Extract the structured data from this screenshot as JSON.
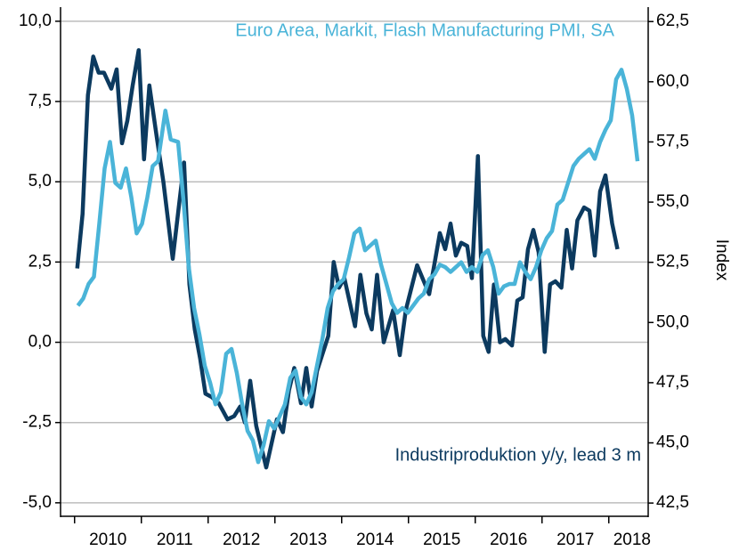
{
  "chart_data": {
    "type": "line",
    "y2label": "Index",
    "xlim": [
      2009.79,
      2018.59
    ],
    "xticks": [
      {
        "value": 2010,
        "label": "2010"
      },
      {
        "value": 2011,
        "label": "2011"
      },
      {
        "value": 2012,
        "label": "2012"
      },
      {
        "value": 2013,
        "label": "2013"
      },
      {
        "value": 2014,
        "label": "2014"
      },
      {
        "value": 2015,
        "label": "2015"
      },
      {
        "value": 2016,
        "label": "2016"
      },
      {
        "value": 2017,
        "label": "2017"
      },
      {
        "value": 2018,
        "label": "2018"
      }
    ],
    "ylim": [
      -5.42,
      10.44
    ],
    "yticks": [
      {
        "value": 10,
        "label": "10,0"
      },
      {
        "value": 7.5,
        "label": "7,5"
      },
      {
        "value": 5,
        "label": "5,0"
      },
      {
        "value": 2.5,
        "label": "2,5"
      },
      {
        "value": 0,
        "label": "0,0"
      },
      {
        "value": -2.5,
        "label": "-2,5"
      },
      {
        "value": -5,
        "label": "-5,0"
      }
    ],
    "y2lim": [
      41.95,
      63.1
    ],
    "y2ticks": [
      {
        "value": 62.5,
        "label": "62,5"
      },
      {
        "value": 60,
        "label": "60,0"
      },
      {
        "value": 57.5,
        "label": "57,5"
      },
      {
        "value": 55,
        "label": "55,0"
      },
      {
        "value": 52.5,
        "label": "52,5"
      },
      {
        "value": 50,
        "label": "50,0"
      },
      {
        "value": 47.5,
        "label": "47,5"
      },
      {
        "value": 45,
        "label": "45,0"
      },
      {
        "value": 42.5,
        "label": "42,5"
      }
    ],
    "grid": true,
    "series": [
      {
        "name": "Industriproduktion y/y, lead 3 m",
        "color": "#0c3a5f",
        "axis": "y",
        "x": [
          2010.04,
          2010.12,
          2010.2,
          2010.28,
          2010.36,
          2010.44,
          2010.55,
          2010.63,
          2010.71,
          2010.79,
          2010.87,
          2010.96,
          2011.04,
          2011.12,
          2011.23,
          2011.33,
          2011.47,
          2011.56,
          2011.64,
          2011.72,
          2011.8,
          2011.88,
          2011.96,
          2012.05,
          2012.16,
          2012.29,
          2012.39,
          2012.48,
          2012.55,
          2012.63,
          2012.72,
          2012.87,
          2013.03,
          2013.12,
          2013.21,
          2013.29,
          2013.39,
          2013.47,
          2013.55,
          2013.63,
          2013.8,
          2013.88,
          2013.96,
          2014.04,
          2014.2,
          2014.28,
          2014.37,
          2014.45,
          2014.53,
          2014.63,
          2014.77,
          2014.87,
          2014.96,
          2015.13,
          2015.31,
          2015.47,
          2015.55,
          2015.63,
          2015.71,
          2015.79,
          2015.88,
          2015.95,
          2016.04,
          2016.12,
          2016.2,
          2016.28,
          2016.37,
          2016.45,
          2016.55,
          2016.63,
          2016.71,
          2016.79,
          2016.87,
          2016.95,
          2017.04,
          2017.12,
          2017.2,
          2017.29,
          2017.37,
          2017.45,
          2017.53,
          2017.63,
          2017.71,
          2017.79,
          2017.87,
          2017.95,
          2018.05,
          2018.13
        ],
        "values": [
          2.3,
          4.0,
          7.7,
          8.9,
          8.4,
          8.4,
          7.9,
          8.5,
          6.2,
          6.9,
          8.0,
          9.1,
          5.7,
          8.0,
          6.4,
          5.0,
          2.6,
          4.2,
          5.6,
          1.8,
          0.4,
          -0.5,
          -1.6,
          -1.7,
          -1.9,
          -2.4,
          -2.3,
          -2.0,
          -2.5,
          -1.2,
          -2.6,
          -3.9,
          -2.4,
          -2.8,
          -1.5,
          -0.8,
          -1.9,
          -0.8,
          -2.0,
          -0.9,
          0.2,
          2.5,
          1.7,
          2.0,
          0.5,
          2.1,
          0.9,
          0.4,
          2.1,
          0.0,
          1.0,
          -0.4,
          1.0,
          2.4,
          1.5,
          3.4,
          2.9,
          3.7,
          2.7,
          3.1,
          3.0,
          2.0,
          5.8,
          0.2,
          -0.3,
          1.8,
          0.0,
          0.1,
          -0.1,
          1.3,
          1.4,
          2.9,
          3.5,
          2.8,
          -0.3,
          1.8,
          1.9,
          1.7,
          3.5,
          2.3,
          3.8,
          4.2,
          4.1,
          2.7,
          4.7,
          5.2,
          3.7,
          2.9
        ]
      },
      {
        "name": "Euro Area, Markit, Flash Manufacturing PMI, SA",
        "color": "#4ab4d8",
        "axis": "y2",
        "x": [
          2010.05,
          2010.13,
          2010.21,
          2010.29,
          2010.37,
          2010.45,
          2010.53,
          2010.61,
          2010.69,
          2010.77,
          2010.85,
          2010.93,
          2011.01,
          2011.09,
          2011.17,
          2011.25,
          2011.36,
          2011.44,
          2011.55,
          2011.63,
          2011.71,
          2011.79,
          2011.87,
          2011.95,
          2012.03,
          2012.11,
          2012.19,
          2012.27,
          2012.35,
          2012.43,
          2012.51,
          2012.59,
          2012.67,
          2012.75,
          2012.83,
          2012.91,
          2012.99,
          2013.07,
          2013.15,
          2013.23,
          2013.31,
          2013.39,
          2013.47,
          2013.55,
          2013.63,
          2013.71,
          2013.79,
          2013.87,
          2013.95,
          2014.03,
          2014.11,
          2014.19,
          2014.27,
          2014.35,
          2014.43,
          2014.51,
          2014.59,
          2014.67,
          2014.75,
          2014.83,
          2014.91,
          2014.99,
          2015.07,
          2015.15,
          2015.23,
          2015.31,
          2015.39,
          2015.47,
          2015.55,
          2015.63,
          2015.71,
          2015.79,
          2015.87,
          2015.95,
          2016.03,
          2016.11,
          2016.19,
          2016.27,
          2016.35,
          2016.43,
          2016.51,
          2016.59,
          2016.67,
          2016.75,
          2016.83,
          2016.91,
          2016.99,
          2017.07,
          2017.15,
          2017.23,
          2017.31,
          2017.39,
          2017.47,
          2017.55,
          2017.63,
          2017.71,
          2017.79,
          2017.87,
          2017.95,
          2018.03,
          2018.11,
          2018.19,
          2018.27,
          2018.35,
          2018.43
        ],
        "values": [
          50.7,
          51.0,
          51.6,
          51.9,
          54.1,
          56.4,
          57.5,
          55.8,
          55.6,
          56.4,
          55.2,
          53.7,
          54.1,
          55.2,
          56.5,
          56.7,
          58.8,
          57.6,
          57.5,
          55.1,
          52.3,
          50.6,
          49.5,
          48.2,
          47.5,
          46.6,
          47.1,
          48.7,
          48.9,
          47.9,
          46.6,
          45.5,
          45.1,
          44.2,
          44.9,
          45.9,
          45.6,
          46.1,
          46.6,
          47.7,
          48.0,
          46.9,
          46.6,
          47.1,
          48.2,
          49.3,
          50.6,
          51.3,
          51.6,
          51.8,
          52.7,
          53.7,
          53.9,
          53.0,
          53.2,
          53.4,
          52.4,
          51.6,
          50.8,
          50.4,
          50.6,
          50.4,
          50.7,
          51.0,
          51.2,
          51.8,
          52.0,
          52.4,
          52.3,
          52.1,
          52.3,
          52.5,
          52.1,
          52.3,
          52.1,
          52.8,
          53.0,
          52.3,
          51.2,
          51.5,
          51.6,
          51.6,
          52.5,
          52.1,
          51.8,
          52.3,
          53.0,
          53.5,
          53.8,
          54.9,
          55.1,
          55.8,
          56.5,
          56.8,
          57.0,
          57.2,
          56.8,
          57.5,
          58.0,
          58.4,
          60.1,
          60.5,
          59.7,
          58.6,
          56.7
        ]
      }
    ]
  }
}
